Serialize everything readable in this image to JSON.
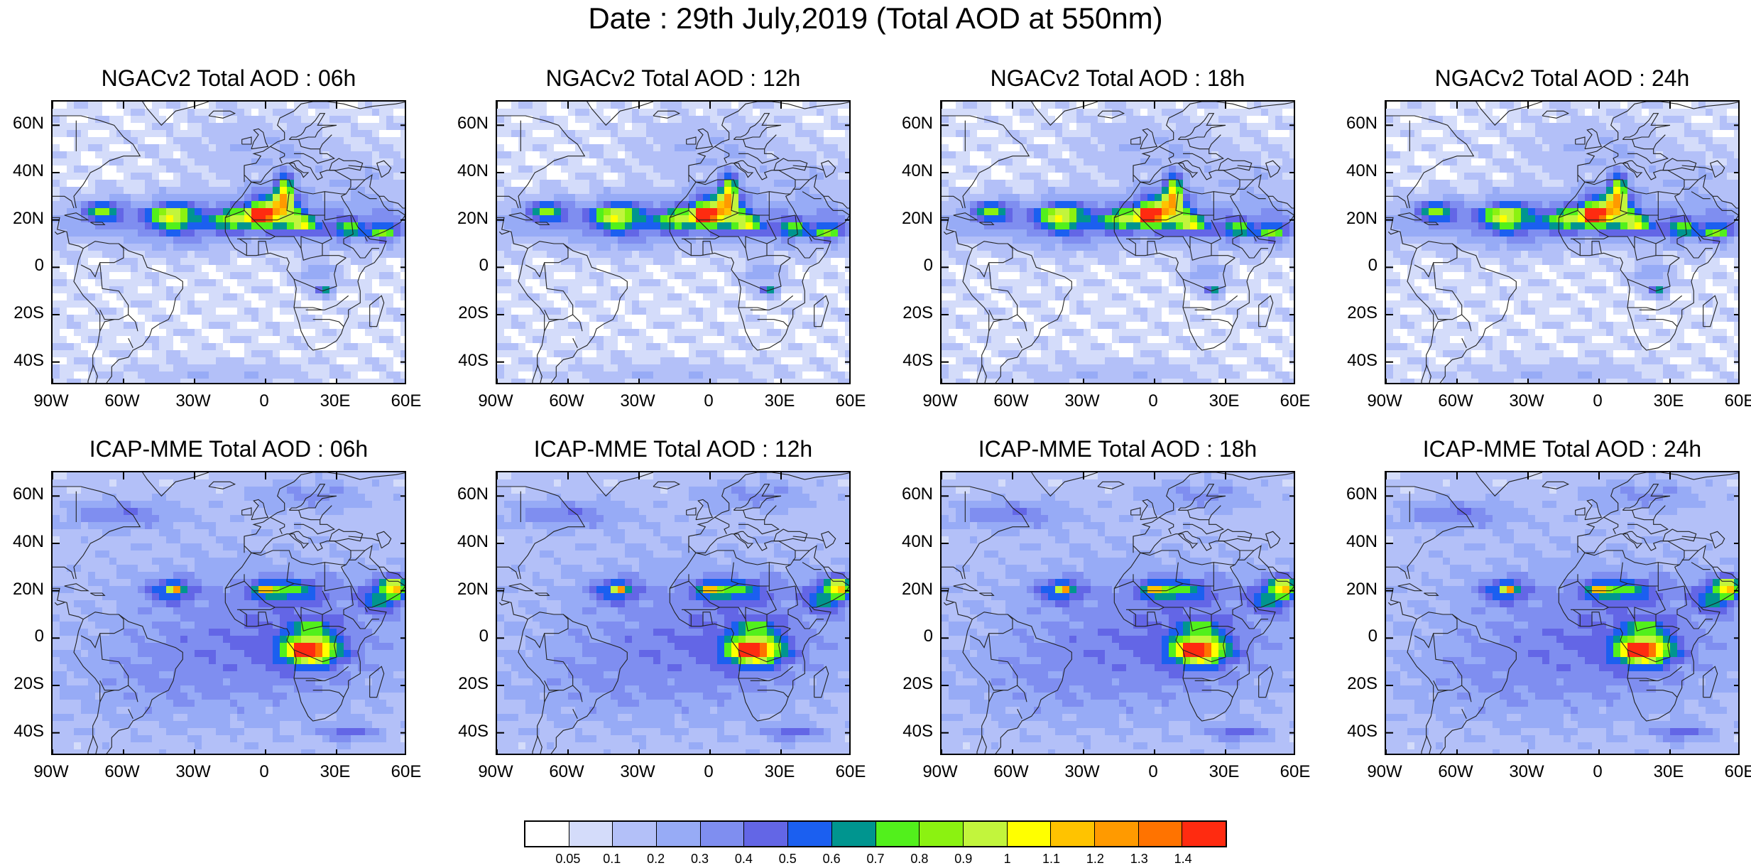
{
  "title": "Date : 29th July,2019 (Total AOD at 550nm)",
  "panels": [
    {
      "title": "NGACv2 Total AOD : 06h",
      "model": "ngac"
    },
    {
      "title": "NGACv2 Total AOD : 12h",
      "model": "ngac"
    },
    {
      "title": "NGACv2 Total AOD : 18h",
      "model": "ngac"
    },
    {
      "title": "NGACv2 Total AOD : 24h",
      "model": "ngac"
    },
    {
      "title": "ICAP-MME Total AOD : 06h",
      "model": "icap"
    },
    {
      "title": "ICAP-MME Total AOD : 12h",
      "model": "icap"
    },
    {
      "title": "ICAP-MME Total AOD : 18h",
      "model": "icap"
    },
    {
      "title": "ICAP-MME Total AOD : 24h",
      "model": "icap"
    }
  ],
  "lat_ticks": [
    "60N",
    "40N",
    "20N",
    "0",
    "20S",
    "40S"
  ],
  "lon_ticks": [
    "90W",
    "60W",
    "30W",
    "0",
    "30E",
    "60E"
  ],
  "map_extent": {
    "lon": [
      -90,
      60
    ],
    "lat": [
      -50,
      70
    ]
  },
  "colorbar": {
    "labels": [
      "0.05",
      "0.1",
      "0.2",
      "0.3",
      "0.4",
      "0.5",
      "0.6",
      "0.7",
      "0.8",
      "0.9",
      "1",
      "1.1",
      "1.2",
      "1.3",
      "1.4"
    ],
    "colors": [
      "#ffffff",
      "#d4dcfa",
      "#b3c0f8",
      "#97abf6",
      "#7f8ef0",
      "#6366e6",
      "#1b5ff0",
      "#00958f",
      "#52f01c",
      "#8bf211",
      "#c2f53c",
      "#ffff00",
      "#ffc300",
      "#ff9a00",
      "#ff7300",
      "#ff2b10"
    ]
  }
}
